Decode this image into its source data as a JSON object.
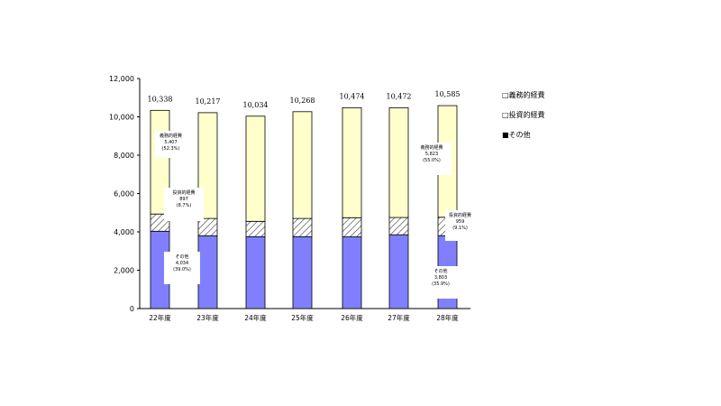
{
  "chart_data": {
    "type": "bar",
    "stacked": true,
    "categories": [
      "22年度",
      "23年度",
      "24年度",
      "25年度",
      "26年度",
      "27年度",
      "28年度"
    ],
    "series": [
      {
        "name": "その他",
        "color": "#8080ff",
        "pattern": "solid",
        "values": [
          4034,
          3800,
          3750,
          3750,
          3740,
          3850,
          3803
        ]
      },
      {
        "name": "投資的経費",
        "color": "#ffffff",
        "pattern": "hatch",
        "values": [
          897,
          900,
          800,
          950,
          1000,
          900,
          959
        ]
      },
      {
        "name": "義務的経費",
        "color": "#ffffcc",
        "pattern": "solid",
        "values": [
          5407,
          5517,
          5484,
          5568,
          5734,
          5722,
          5823
        ]
      }
    ],
    "totals": [
      "10,338",
      "10,217",
      "10,034",
      "10,268",
      "10,474",
      "10,472",
      "10,585"
    ],
    "yticks": [
      "0",
      "2,000",
      "4,000",
      "6,000",
      "8,000",
      "10,000",
      "12,000"
    ],
    "ylim": [
      0,
      12000
    ],
    "grid": false,
    "legend_position": "right",
    "legend": [
      "□義務的経費",
      "□投資的経費",
      "■その他"
    ],
    "annotations": [
      {
        "lines": [
          "義務的経費",
          "5,407",
          "(52.3%)"
        ]
      },
      {
        "lines": [
          "投資的経費",
          "897",
          "(8.7%)"
        ]
      },
      {
        "lines": [
          "その他",
          "4,034",
          "(39.0%)"
        ]
      },
      {
        "lines": [
          "義務的経費",
          "5,823",
          "(55.0%)"
        ]
      },
      {
        "lines": [
          "投資的経費",
          "959",
          "(9.1%)"
        ]
      },
      {
        "lines": [
          "その他",
          "3,803",
          "(35.9%)"
        ]
      }
    ]
  }
}
